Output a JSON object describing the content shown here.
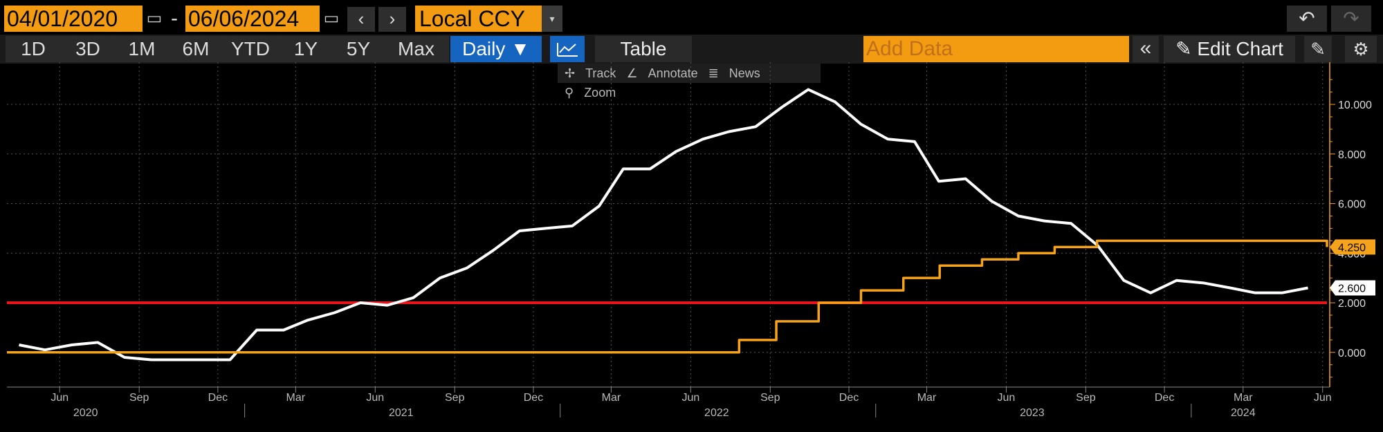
{
  "toolbar": {
    "start_date": "04/01/2020",
    "end_date": "06/06/2024",
    "date_separator": "-",
    "currency": "Local CCY",
    "nav_prev": "‹",
    "nav_next": "›",
    "dropdown_arrow": "▾",
    "undo": "↶",
    "redo": "↷"
  },
  "periods": [
    "1D",
    "3D",
    "1M",
    "6M",
    "YTD",
    "1Y",
    "5Y",
    "Max"
  ],
  "frequency": "Daily ▼",
  "table_label": "Table",
  "add_data_placeholder": "Add Data",
  "edit_chart_label": "Edit Chart",
  "chart_tools": {
    "track": "Track",
    "annotate": "Annotate",
    "news": "News",
    "zoom": "Zoom"
  },
  "colors": {
    "white_series": "#ffffff",
    "orange_series": "#f5a31a",
    "red_line": "#e8141c",
    "accent": "#f39c12",
    "selected": "#1565c0"
  },
  "chart_data": {
    "type": "line",
    "x_start": "2020-04-01",
    "x_end": "2024-06-06",
    "ylim": [
      -1.4,
      11.2
    ],
    "yticks": [
      {
        "value": 10,
        "label": "10.000"
      },
      {
        "value": 8,
        "label": "8.000"
      },
      {
        "value": 6,
        "label": "6.000"
      },
      {
        "value": 4,
        "label": "4.000"
      },
      {
        "value": 2,
        "label": "2.000"
      },
      {
        "value": 0,
        "label": "0.000"
      }
    ],
    "month_ticks": [
      {
        "date": "2020-06-01",
        "label": "Jun"
      },
      {
        "date": "2020-09-01",
        "label": "Sep"
      },
      {
        "date": "2020-12-01",
        "label": "Dec"
      },
      {
        "date": "2021-03-01",
        "label": "Mar"
      },
      {
        "date": "2021-06-01",
        "label": "Jun"
      },
      {
        "date": "2021-09-01",
        "label": "Sep"
      },
      {
        "date": "2021-12-01",
        "label": "Dec"
      },
      {
        "date": "2022-03-01",
        "label": "Mar"
      },
      {
        "date": "2022-06-01",
        "label": "Jun"
      },
      {
        "date": "2022-09-01",
        "label": "Sep"
      },
      {
        "date": "2022-12-01",
        "label": "Dec"
      },
      {
        "date": "2023-03-01",
        "label": "Mar"
      },
      {
        "date": "2023-06-01",
        "label": "Jun"
      },
      {
        "date": "2023-09-01",
        "label": "Sep"
      },
      {
        "date": "2023-12-01",
        "label": "Dec"
      },
      {
        "date": "2024-03-01",
        "label": "Mar"
      },
      {
        "date": "2024-06-01",
        "label": "Jun"
      }
    ],
    "year_ticks": [
      {
        "date": "2020-07-01",
        "label": "2020"
      },
      {
        "date": "2021-07-01",
        "label": "2021"
      },
      {
        "date": "2022-07-01",
        "label": "2022"
      },
      {
        "date": "2023-07-01",
        "label": "2023"
      },
      {
        "date": "2024-03-01",
        "label": "2024"
      }
    ],
    "year_boundaries": [
      "2021-01-01",
      "2022-01-01",
      "2023-01-01",
      "2024-01-01"
    ],
    "series": [
      {
        "color": "#ffffff",
        "step": false,
        "last_label": "2.600",
        "points": [
          [
            "2020-04-15",
            0.3
          ],
          [
            "2020-05-15",
            0.1
          ],
          [
            "2020-06-15",
            0.3
          ],
          [
            "2020-07-15",
            0.4
          ],
          [
            "2020-08-15",
            -0.2
          ],
          [
            "2020-09-15",
            -0.3
          ],
          [
            "2020-10-15",
            -0.3
          ],
          [
            "2020-11-15",
            -0.3
          ],
          [
            "2020-12-15",
            -0.3
          ],
          [
            "2021-01-15",
            0.9
          ],
          [
            "2021-02-15",
            0.9
          ],
          [
            "2021-03-15",
            1.3
          ],
          [
            "2021-04-15",
            1.6
          ],
          [
            "2021-05-15",
            2.0
          ],
          [
            "2021-06-15",
            1.9
          ],
          [
            "2021-07-15",
            2.2
          ],
          [
            "2021-08-15",
            3.0
          ],
          [
            "2021-09-15",
            3.4
          ],
          [
            "2021-10-15",
            4.1
          ],
          [
            "2021-11-15",
            4.9
          ],
          [
            "2021-12-15",
            5.0
          ],
          [
            "2022-01-15",
            5.1
          ],
          [
            "2022-02-15",
            5.9
          ],
          [
            "2022-03-15",
            7.4
          ],
          [
            "2022-04-15",
            7.4
          ],
          [
            "2022-05-15",
            8.1
          ],
          [
            "2022-06-15",
            8.6
          ],
          [
            "2022-07-15",
            8.9
          ],
          [
            "2022-08-15",
            9.1
          ],
          [
            "2022-09-15",
            9.9
          ],
          [
            "2022-10-15",
            10.6
          ],
          [
            "2022-11-15",
            10.1
          ],
          [
            "2022-12-15",
            9.2
          ],
          [
            "2023-01-15",
            8.6
          ],
          [
            "2023-02-15",
            8.5
          ],
          [
            "2023-03-15",
            6.9
          ],
          [
            "2023-04-15",
            7.0
          ],
          [
            "2023-05-15",
            6.1
          ],
          [
            "2023-06-15",
            5.5
          ],
          [
            "2023-07-15",
            5.3
          ],
          [
            "2023-08-15",
            5.2
          ],
          [
            "2023-09-15",
            4.3
          ],
          [
            "2023-10-15",
            2.9
          ],
          [
            "2023-11-15",
            2.4
          ],
          [
            "2023-12-15",
            2.9
          ],
          [
            "2024-01-15",
            2.8
          ],
          [
            "2024-02-15",
            2.6
          ],
          [
            "2024-03-15",
            2.4
          ],
          [
            "2024-04-15",
            2.4
          ],
          [
            "2024-05-15",
            2.6
          ]
        ]
      },
      {
        "color": "#f5a31a",
        "step": true,
        "last_label": "4.250",
        "points": [
          [
            "2020-04-01",
            0.0
          ],
          [
            "2022-07-27",
            0.5
          ],
          [
            "2022-09-08",
            1.25
          ],
          [
            "2022-10-27",
            2.0
          ],
          [
            "2022-12-15",
            2.5
          ],
          [
            "2023-02-02",
            3.0
          ],
          [
            "2023-03-16",
            3.5
          ],
          [
            "2023-05-04",
            3.75
          ],
          [
            "2023-06-15",
            4.0
          ],
          [
            "2023-07-27",
            4.25
          ],
          [
            "2023-09-14",
            4.5
          ],
          [
            "2024-06-06",
            4.25
          ]
        ]
      }
    ],
    "horizontal_line": {
      "value": 2.0,
      "color": "#e8141c"
    }
  }
}
